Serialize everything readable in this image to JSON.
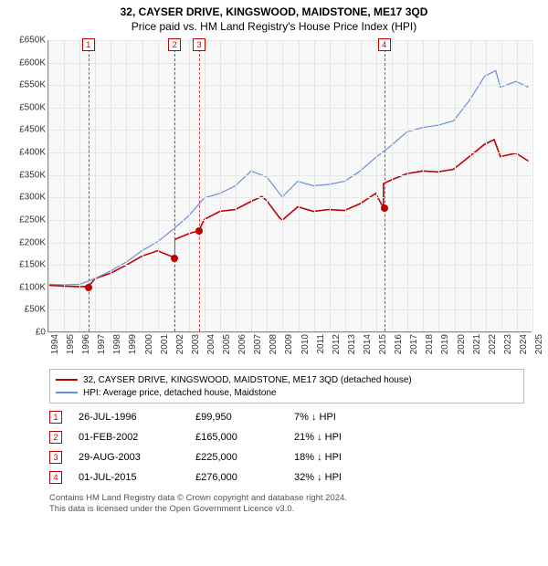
{
  "title": {
    "line1": "32, CAYSER DRIVE, KINGSWOOD, MAIDSTONE, ME17 3QD",
    "line2": "Price paid vs. HM Land Registry's House Price Index (HPI)"
  },
  "chart": {
    "type": "line",
    "background": "#f8f8f8",
    "grid_color": "#e6e6e6",
    "axis_color": "#888888",
    "xlim": [
      1994,
      2025
    ],
    "ylim": [
      0,
      650000
    ],
    "ytick_step": 50000,
    "yticks": [
      "£0",
      "£50K",
      "£100K",
      "£150K",
      "£200K",
      "£250K",
      "£300K",
      "£350K",
      "£400K",
      "£450K",
      "£500K",
      "£550K",
      "£600K",
      "£650K"
    ],
    "xticks": [
      "1994",
      "1995",
      "1996",
      "1997",
      "1998",
      "1999",
      "2000",
      "2001",
      "2002",
      "2003",
      "2004",
      "2005",
      "2006",
      "2007",
      "2008",
      "2009",
      "2010",
      "2011",
      "2012",
      "2013",
      "2014",
      "2015",
      "2016",
      "2017",
      "2018",
      "2019",
      "2020",
      "2021",
      "2022",
      "2023",
      "2024",
      "2025"
    ],
    "label_fontsize": 10,
    "series": [
      {
        "name": "price_paid",
        "color": "#c00000",
        "width": 1.6,
        "data": [
          [
            1994,
            103000
          ],
          [
            1995,
            101000
          ],
          [
            1996,
            100000
          ],
          [
            1996.56,
            99950
          ],
          [
            1997,
            118000
          ],
          [
            1998,
            130000
          ],
          [
            1999,
            148000
          ],
          [
            2000,
            168000
          ],
          [
            2001,
            180000
          ],
          [
            2002.08,
            165000
          ],
          [
            2002.09,
            205000
          ],
          [
            2003,
            218000
          ],
          [
            2003.66,
            225000
          ],
          [
            2004,
            250000
          ],
          [
            2005,
            268000
          ],
          [
            2006,
            272000
          ],
          [
            2007,
            290000
          ],
          [
            2007.7,
            301000
          ],
          [
            2008,
            292000
          ],
          [
            2008.8,
            255000
          ],
          [
            2009,
            248000
          ],
          [
            2010,
            278000
          ],
          [
            2011,
            268000
          ],
          [
            2012,
            272000
          ],
          [
            2013,
            270000
          ],
          [
            2014,
            285000
          ],
          [
            2015,
            308000
          ],
          [
            2015.49,
            276000
          ],
          [
            2015.5,
            330000
          ],
          [
            2016,
            338000
          ],
          [
            2017,
            352000
          ],
          [
            2018,
            358000
          ],
          [
            2019,
            356000
          ],
          [
            2020,
            362000
          ],
          [
            2021,
            390000
          ],
          [
            2022,
            418000
          ],
          [
            2022.6,
            428000
          ],
          [
            2023,
            390000
          ],
          [
            2024,
            398000
          ],
          [
            2024.8,
            380000
          ]
        ]
      },
      {
        "name": "hpi",
        "color": "#6a8fd8",
        "width": 1.2,
        "data": [
          [
            1994,
            105000
          ],
          [
            1995,
            104000
          ],
          [
            1996,
            105000
          ],
          [
            1997,
            118000
          ],
          [
            1998,
            135000
          ],
          [
            1999,
            155000
          ],
          [
            2000,
            180000
          ],
          [
            2001,
            200000
          ],
          [
            2002,
            228000
          ],
          [
            2003,
            258000
          ],
          [
            2004,
            298000
          ],
          [
            2005,
            308000
          ],
          [
            2006,
            325000
          ],
          [
            2007,
            358000
          ],
          [
            2008,
            345000
          ],
          [
            2009,
            300000
          ],
          [
            2010,
            335000
          ],
          [
            2011,
            325000
          ],
          [
            2012,
            328000
          ],
          [
            2013,
            335000
          ],
          [
            2014,
            358000
          ],
          [
            2015,
            388000
          ],
          [
            2016,
            415000
          ],
          [
            2017,
            445000
          ],
          [
            2018,
            455000
          ],
          [
            2019,
            460000
          ],
          [
            2020,
            470000
          ],
          [
            2021,
            515000
          ],
          [
            2022,
            570000
          ],
          [
            2022.7,
            582000
          ],
          [
            2023,
            545000
          ],
          [
            2024,
            558000
          ],
          [
            2024.8,
            545000
          ]
        ]
      }
    ],
    "markers": [
      {
        "num": "1",
        "year": 1996.56,
        "value": 99950
      },
      {
        "num": "2",
        "year": 2002.08,
        "value": 165000
      },
      {
        "num": "3",
        "year": 2003.66,
        "value": 225000
      },
      {
        "num": "4",
        "year": 2015.5,
        "value": 276000
      }
    ],
    "marker_line_color": "#d04040",
    "marker_box_border": "#c00000"
  },
  "legend": {
    "items": [
      {
        "color": "#c00000",
        "label": "32, CAYSER DRIVE, KINGSWOOD, MAIDSTONE, ME17 3QD (detached house)"
      },
      {
        "color": "#6a8fd8",
        "label": "HPI: Average price, detached house, Maidstone"
      }
    ]
  },
  "table": {
    "rows": [
      {
        "num": "1",
        "date": "26-JUL-1996",
        "price": "£99,950",
        "diff": "7% ↓ HPI"
      },
      {
        "num": "2",
        "date": "01-FEB-2002",
        "price": "£165,000",
        "diff": "21% ↓ HPI"
      },
      {
        "num": "3",
        "date": "29-AUG-2003",
        "price": "£225,000",
        "diff": "18% ↓ HPI"
      },
      {
        "num": "4",
        "date": "01-JUL-2015",
        "price": "£276,000",
        "diff": "32% ↓ HPI"
      }
    ]
  },
  "footnote": {
    "line1": "Contains HM Land Registry data © Crown copyright and database right 2024.",
    "line2": "This data is licensed under the Open Government Licence v3.0."
  }
}
